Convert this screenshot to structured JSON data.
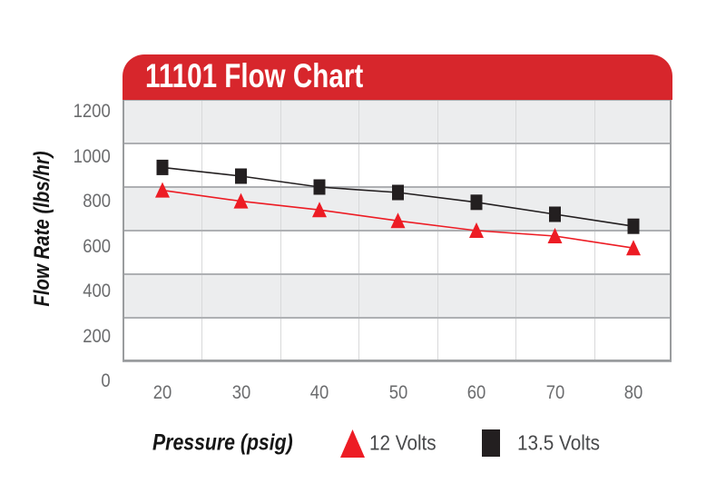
{
  "title_banner": {
    "label": "11101 Flow Chart"
  },
  "colors": {
    "banner_red": "#d7262c",
    "series_red": "#ed1c24",
    "series_black": "#231f20",
    "band_gray": "#ecedee",
    "band_white": "#ffffff",
    "hline": "#aeb0b3",
    "vline": "#d8d9da",
    "axis": "#9a9c9e",
    "tick_text": "#6b6c6e",
    "legend_text": "#48494b"
  },
  "y_axis": {
    "title": "Flow Rate (lbs/hr)",
    "ticks": [
      "1200",
      "1000",
      "800",
      "600",
      "400",
      "200",
      "0"
    ]
  },
  "x_axis": {
    "title": "Pressure (psig)",
    "ticks": [
      "20",
      "30",
      "40",
      "50",
      "60",
      "70",
      "80"
    ]
  },
  "legend": {
    "items": [
      {
        "label": "12 Volts",
        "marker": "red-triangle"
      },
      {
        "label": "13.5 Volts",
        "marker": "black-square"
      }
    ]
  },
  "chart_data": {
    "type": "line",
    "title": "11101 Flow Chart",
    "xlabel": "Pressure (psig)",
    "ylabel": "Flow Rate (lbs/hr)",
    "x": [
      20,
      30,
      40,
      50,
      60,
      70,
      80
    ],
    "series": [
      {
        "name": "13.5 Volts",
        "marker": "square",
        "color": "#231f20",
        "values": [
          890,
          850,
          800,
          775,
          730,
          675,
          620
        ]
      },
      {
        "name": "12 Volts",
        "marker": "triangle",
        "color": "#ed1c24",
        "values": [
          785,
          735,
          695,
          645,
          600,
          575,
          520
        ]
      }
    ],
    "ylim": [
      0,
      1200
    ],
    "yticks": [
      0,
      200,
      400,
      600,
      800,
      1000,
      1200
    ],
    "xlim": [
      20,
      80
    ],
    "grid": "alternating horizontal gray bands, light vertical lines at midpoints between x ticks",
    "legend_position": "bottom"
  }
}
